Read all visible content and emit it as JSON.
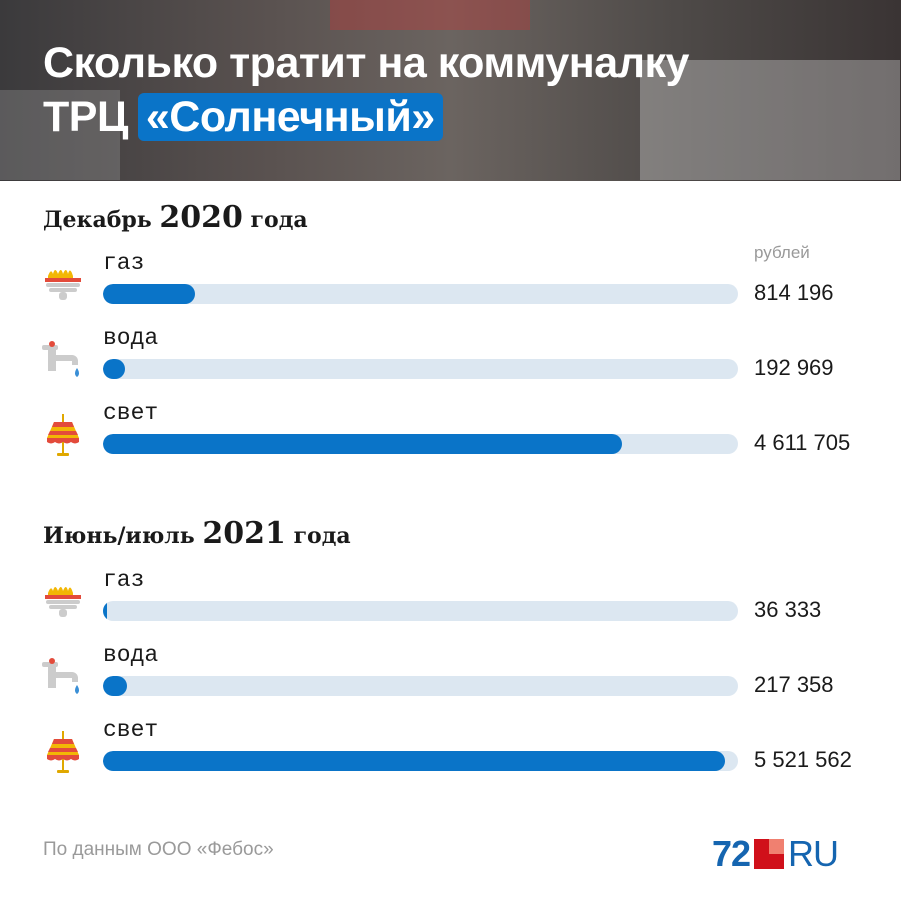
{
  "header": {
    "title_line1": "Сколько тратит на коммуналку",
    "title_line2_prefix": "ТРЦ",
    "title_highlight": "«Солнечный»"
  },
  "unit_label": "рублей",
  "colors": {
    "accent": "#0a74c8",
    "track": "#dce7f1"
  },
  "chart_data": {
    "type": "bar",
    "orientation": "horizontal",
    "xlim": [
      0,
      5640000
    ],
    "groups": [
      {
        "title_prefix": "Декабрь",
        "title_year": "2020",
        "title_suffix": "года",
        "items": [
          {
            "label": "газ",
            "icon": "gas-burner-icon",
            "value": 814196,
            "display": "814 196"
          },
          {
            "label": "вода",
            "icon": "water-tap-icon",
            "value": 192969,
            "display": "192 969"
          },
          {
            "label": "свет",
            "icon": "lamp-icon",
            "value": 4611705,
            "display": "4 611 705"
          }
        ]
      },
      {
        "title_prefix": "Июнь/июль",
        "title_year": "2021",
        "title_suffix": "года",
        "items": [
          {
            "label": "газ",
            "icon": "gas-burner-icon",
            "value": 36333,
            "display": "36 333"
          },
          {
            "label": "вода",
            "icon": "water-tap-icon",
            "value": 217358,
            "display": "217 358"
          },
          {
            "label": "свет",
            "icon": "lamp-icon",
            "value": 5521562,
            "display": "5 521 562"
          }
        ]
      }
    ]
  },
  "footer": {
    "source": "По данным ООО «Фебос»",
    "logo_num": "72",
    "logo_ru": "RU"
  }
}
